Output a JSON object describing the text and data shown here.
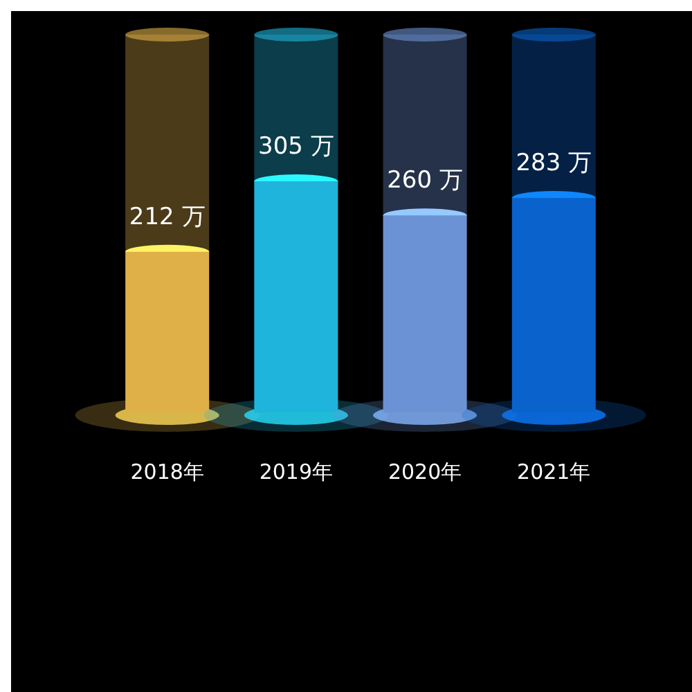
{
  "chart_data": {
    "type": "bar",
    "categories": [
      "2018年",
      "2019年",
      "2020年",
      "2021年"
    ],
    "values": [
      212,
      305,
      260,
      283
    ],
    "value_labels": [
      "212 万",
      "305 万",
      "260 万",
      "283 万"
    ],
    "colors": [
      "#e0b048",
      "#1fb4dc",
      "#6c92d6",
      "#0a62cc"
    ],
    "tick_labels": "x"
  }
}
